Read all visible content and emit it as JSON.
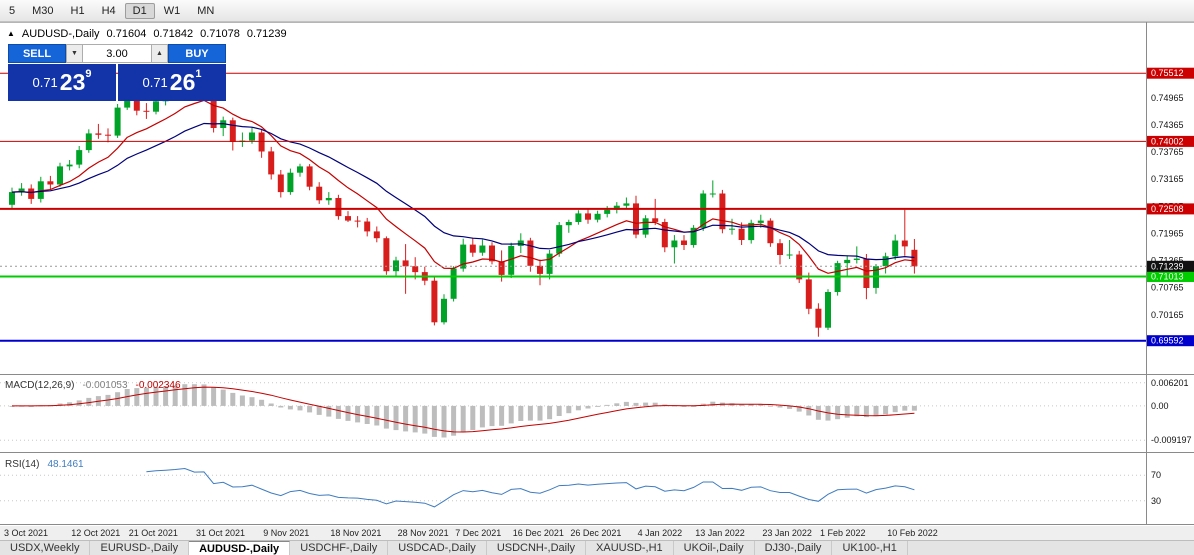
{
  "toolbar": {
    "timeframes": [
      "5",
      "M30",
      "H1",
      "H4",
      "D1",
      "W1",
      "MN"
    ],
    "active": "D1"
  },
  "header": {
    "collapse_glyph": "▲",
    "symbol": "AUDUSD-,Daily",
    "open": "0.71604",
    "high": "0.71842",
    "low": "0.71078",
    "close": "0.71239"
  },
  "trade_panel": {
    "sell_label": "SELL",
    "buy_label": "BUY",
    "volume": "3.00",
    "volume_down_glyph": "▼",
    "volume_up_glyph": "▲",
    "sell_price": {
      "prefix": "0.71",
      "big": "23",
      "sup": "9"
    },
    "buy_price": {
      "prefix": "0.71",
      "big": "26",
      "sup": "1"
    }
  },
  "macd": {
    "title": "MACD(12,26,9)",
    "value_main": "-0.001053",
    "value_signal": "-0.002346",
    "fast": 12,
    "slow": 26,
    "signal": 9,
    "range": {
      "min": -0.0113,
      "max": 0.0075
    },
    "ticks": [
      {
        "v": 0.006201,
        "label": "0.006201"
      },
      {
        "v": 0,
        "label": "0.00"
      },
      {
        "v": -0.009197,
        "label": "-0.009197"
      }
    ]
  },
  "rsi": {
    "title": "RSI(14)",
    "value": "48.1461",
    "period": 14,
    "range": {
      "min": 0,
      "max": 100
    },
    "ticks": [
      {
        "v": 70,
        "label": "70"
      },
      {
        "v": 30,
        "label": "30"
      }
    ]
  },
  "tabs": {
    "items": [
      "USDX,Weekly",
      "EURUSD-,Daily",
      "AUDUSD-,Daily",
      "USDCHF-,Daily",
      "USDCAD-,Daily",
      "USDCNH-,Daily",
      "XAUUSD-,H1",
      "UKOil-,Daily",
      "DJ30-,Daily",
      "UK100-,H1"
    ],
    "active_index": 2
  },
  "colors": {
    "bull": "#00a327",
    "bear": "#d81d1d",
    "ma_fast": "#c40000",
    "ma_slow": "#00007a",
    "macd_hist": "#bdbdbd",
    "macd_signal": "#c40000",
    "rsi_line": "#3f7cbf",
    "badge_current": "#111111",
    "level_red": "#cc0000",
    "level_green": "#00cc00",
    "level_blue": "#0000cc"
  },
  "chart_data": {
    "type": "candlestick",
    "symbol": "AUDUSD",
    "timeframe": "Daily",
    "price_range": {
      "min": 0.689,
      "max": 0.766
    },
    "y_ticks": [
      0.74965,
      0.74365,
      0.73765,
      0.73165,
      0.72565,
      0.71965,
      0.71365,
      0.70765,
      0.70165
    ],
    "levels": [
      {
        "price": 0.75512,
        "label": "0.75512",
        "color": "#cc0000",
        "width": 1
      },
      {
        "price": 0.74002,
        "label": "0.74002",
        "color": "#cc0000",
        "width": 1
      },
      {
        "price": 0.72508,
        "label": "0.72508",
        "color": "#cc0000",
        "width": 2
      },
      {
        "price": 0.71013,
        "label": "0.71013",
        "color": "#00cc00",
        "width": 2
      },
      {
        "price": 0.69592,
        "label": "0.69592",
        "color": "#0000cc",
        "width": 2
      }
    ],
    "current_price": {
      "value": 0.71239,
      "label": "0.71239"
    },
    "x_labels": [
      {
        "i": 0,
        "label": "3 Oct 2021"
      },
      {
        "i": 7,
        "label": "12 Oct 2021"
      },
      {
        "i": 13,
        "label": "21 Oct 2021"
      },
      {
        "i": 20,
        "label": "31 Oct 2021"
      },
      {
        "i": 27,
        "label": "9 Nov 2021"
      },
      {
        "i": 34,
        "label": "18 Nov 2021"
      },
      {
        "i": 41,
        "label": "28 Nov 2021"
      },
      {
        "i": 47,
        "label": "7 Dec 2021"
      },
      {
        "i": 53,
        "label": "16 Dec 2021"
      },
      {
        "i": 59,
        "label": "26 Dec 2021"
      },
      {
        "i": 66,
        "label": "4 Jan 2022"
      },
      {
        "i": 72,
        "label": "13 Jan 2022"
      },
      {
        "i": 79,
        "label": "23 Jan 2022"
      },
      {
        "i": 85,
        "label": "1 Feb 2022"
      },
      {
        "i": 92,
        "label": "10 Feb 2022"
      }
    ],
    "ohlc": [
      [
        0.726,
        0.7298,
        0.7252,
        0.7288
      ],
      [
        0.7288,
        0.7308,
        0.728,
        0.7296
      ],
      [
        0.7296,
        0.7305,
        0.7262,
        0.7273
      ],
      [
        0.7273,
        0.7322,
        0.7265,
        0.7312
      ],
      [
        0.7312,
        0.7324,
        0.7295,
        0.7305
      ],
      [
        0.7305,
        0.7353,
        0.73,
        0.7345
      ],
      [
        0.7345,
        0.7359,
        0.7336,
        0.7349
      ],
      [
        0.7349,
        0.739,
        0.7341,
        0.7381
      ],
      [
        0.7381,
        0.7427,
        0.7375,
        0.7418
      ],
      [
        0.7418,
        0.7439,
        0.7406,
        0.7415
      ],
      [
        0.7415,
        0.7429,
        0.7398,
        0.7413
      ],
      [
        0.7413,
        0.7483,
        0.7408,
        0.7475
      ],
      [
        0.7475,
        0.7525,
        0.747,
        0.7517
      ],
      [
        0.7517,
        0.7527,
        0.7458,
        0.7468
      ],
      [
        0.7468,
        0.7485,
        0.745,
        0.7466
      ],
      [
        0.7466,
        0.75,
        0.746,
        0.7489
      ],
      [
        0.7489,
        0.7512,
        0.748,
        0.7499
      ],
      [
        0.7499,
        0.7527,
        0.7492,
        0.7517
      ],
      [
        0.7517,
        0.7555,
        0.7512,
        0.7541
      ],
      [
        0.7541,
        0.7551,
        0.75,
        0.7518
      ],
      [
        0.7518,
        0.7535,
        0.7495,
        0.7522
      ],
      [
        0.7522,
        0.7531,
        0.742,
        0.743
      ],
      [
        0.743,
        0.7455,
        0.7412,
        0.7447
      ],
      [
        0.7447,
        0.7453,
        0.738,
        0.7399
      ],
      [
        0.7399,
        0.742,
        0.7388,
        0.7402
      ],
      [
        0.7402,
        0.7432,
        0.7395,
        0.742
      ],
      [
        0.742,
        0.7427,
        0.7364,
        0.7378
      ],
      [
        0.7378,
        0.7388,
        0.7316,
        0.7327
      ],
      [
        0.7327,
        0.7337,
        0.7276,
        0.7288
      ],
      [
        0.7288,
        0.734,
        0.7282,
        0.7331
      ],
      [
        0.7331,
        0.7351,
        0.7322,
        0.7345
      ],
      [
        0.7345,
        0.735,
        0.7292,
        0.73
      ],
      [
        0.73,
        0.731,
        0.7262,
        0.727
      ],
      [
        0.727,
        0.7288,
        0.726,
        0.7275
      ],
      [
        0.7275,
        0.7282,
        0.7227,
        0.7235
      ],
      [
        0.7235,
        0.7246,
        0.7222,
        0.7225
      ],
      [
        0.7225,
        0.7235,
        0.721,
        0.7223
      ],
      [
        0.7223,
        0.7231,
        0.719,
        0.7201
      ],
      [
        0.7201,
        0.7212,
        0.7177,
        0.7186
      ],
      [
        0.7186,
        0.719,
        0.7105,
        0.7113
      ],
      [
        0.7113,
        0.7145,
        0.71,
        0.7137
      ],
      [
        0.7137,
        0.7173,
        0.7063,
        0.7124
      ],
      [
        0.7124,
        0.7144,
        0.7095,
        0.7111
      ],
      [
        0.7111,
        0.7123,
        0.7082,
        0.7092
      ],
      [
        0.7092,
        0.7102,
        0.6993,
        0.7
      ],
      [
        0.7,
        0.7062,
        0.6995,
        0.7052
      ],
      [
        0.7052,
        0.7124,
        0.7046,
        0.7119
      ],
      [
        0.7119,
        0.7185,
        0.7112,
        0.7172
      ],
      [
        0.7172,
        0.7187,
        0.7145,
        0.7154
      ],
      [
        0.7154,
        0.7183,
        0.7147,
        0.717
      ],
      [
        0.717,
        0.7177,
        0.7128,
        0.7135
      ],
      [
        0.7135,
        0.7159,
        0.709,
        0.7105
      ],
      [
        0.7105,
        0.7176,
        0.7098,
        0.7169
      ],
      [
        0.7169,
        0.7197,
        0.7153,
        0.7181
      ],
      [
        0.7181,
        0.7187,
        0.7112,
        0.7125
      ],
      [
        0.7125,
        0.7139,
        0.7082,
        0.7107
      ],
      [
        0.7107,
        0.716,
        0.7095,
        0.7152
      ],
      [
        0.7152,
        0.7222,
        0.7145,
        0.7215
      ],
      [
        0.7215,
        0.7227,
        0.7198,
        0.7222
      ],
      [
        0.7222,
        0.7248,
        0.7216,
        0.7241
      ],
      [
        0.7241,
        0.725,
        0.7218,
        0.7227
      ],
      [
        0.7227,
        0.7247,
        0.7221,
        0.724
      ],
      [
        0.724,
        0.7257,
        0.7232,
        0.7249
      ],
      [
        0.7249,
        0.7266,
        0.7241,
        0.7258
      ],
      [
        0.7258,
        0.7276,
        0.725,
        0.7263
      ],
      [
        0.7263,
        0.728,
        0.7186,
        0.7194
      ],
      [
        0.7194,
        0.7237,
        0.7187,
        0.723
      ],
      [
        0.723,
        0.7273,
        0.7215,
        0.7222
      ],
      [
        0.7222,
        0.7229,
        0.7155,
        0.7166
      ],
      [
        0.7166,
        0.7193,
        0.713,
        0.7181
      ],
      [
        0.7181,
        0.7193,
        0.716,
        0.7171
      ],
      [
        0.7171,
        0.7215,
        0.7165,
        0.7209
      ],
      [
        0.7209,
        0.7292,
        0.7202,
        0.7285
      ],
      [
        0.7285,
        0.7314,
        0.7276,
        0.7285
      ],
      [
        0.7285,
        0.7293,
        0.7197,
        0.7206
      ],
      [
        0.7206,
        0.7229,
        0.7194,
        0.7207
      ],
      [
        0.7207,
        0.7221,
        0.7171,
        0.7182
      ],
      [
        0.7182,
        0.7227,
        0.7174,
        0.722
      ],
      [
        0.722,
        0.7238,
        0.7209,
        0.7225
      ],
      [
        0.7225,
        0.723,
        0.7167,
        0.7175
      ],
      [
        0.7175,
        0.7184,
        0.7128,
        0.7149
      ],
      [
        0.7149,
        0.7182,
        0.714,
        0.715
      ],
      [
        0.715,
        0.7158,
        0.7087,
        0.7095
      ],
      [
        0.7095,
        0.711,
        0.7018,
        0.703
      ],
      [
        0.703,
        0.7042,
        0.6968,
        0.6988
      ],
      [
        0.6988,
        0.7073,
        0.6983,
        0.7067
      ],
      [
        0.7067,
        0.7136,
        0.7059,
        0.7131
      ],
      [
        0.7131,
        0.7148,
        0.71,
        0.7138
      ],
      [
        0.7138,
        0.7168,
        0.713,
        0.7141
      ],
      [
        0.7141,
        0.7151,
        0.7051,
        0.7076
      ],
      [
        0.7076,
        0.7129,
        0.7063,
        0.7124
      ],
      [
        0.7124,
        0.7154,
        0.7108,
        0.7146
      ],
      [
        0.7146,
        0.7194,
        0.7138,
        0.7181
      ],
      [
        0.7181,
        0.7249,
        0.7147,
        0.7168
      ],
      [
        0.71604,
        0.71842,
        0.71078,
        0.71239
      ]
    ]
  }
}
